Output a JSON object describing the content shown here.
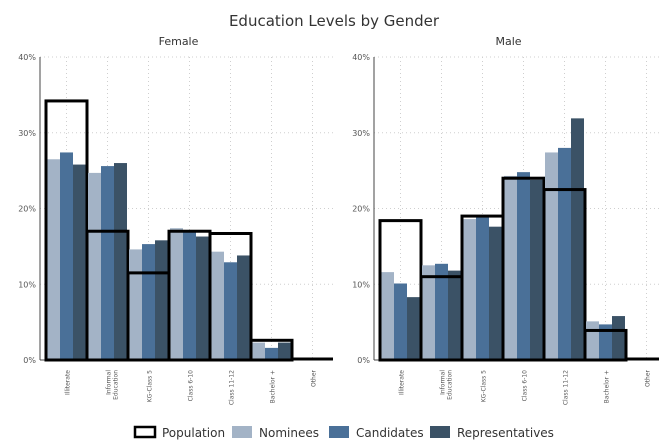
{
  "chart_data": {
    "type": "bar",
    "title": "Education Levels by Gender",
    "ylim": [
      0,
      40
    ],
    "yticks": [
      "0%",
      "10%",
      "20%",
      "30%",
      "40%"
    ],
    "grid": true,
    "legend_position": "bottom",
    "categories": [
      "Illiterate",
      "Informal Education",
      "KG-Class 5",
      "Class 6-10",
      "Class 11-12",
      "Bachelor +",
      "Other"
    ],
    "legend": [
      {
        "name": "Population",
        "style": "outline",
        "color": "#000000"
      },
      {
        "name": "Nominees",
        "style": "fill",
        "color": "#a3b3c6"
      },
      {
        "name": "Candidates",
        "style": "fill",
        "color": "#4a7098"
      },
      {
        "name": "Representatives",
        "style": "fill",
        "color": "#3b5266"
      }
    ],
    "panels": [
      {
        "name": "Female",
        "series": [
          {
            "name": "Population",
            "values": [
              34.2,
              17.0,
              11.5,
              17.0,
              16.7,
              2.6,
              0.3
            ]
          },
          {
            "name": "Nominees",
            "values": [
              26.5,
              24.7,
              14.6,
              17.4,
              14.3,
              2.3,
              0
            ]
          },
          {
            "name": "Candidates",
            "values": [
              27.4,
              25.6,
              15.3,
              17.1,
              12.9,
              1.6,
              0
            ]
          },
          {
            "name": "Representatives",
            "values": [
              25.8,
              26.0,
              15.8,
              16.3,
              13.8,
              2.3,
              0
            ]
          }
        ]
      },
      {
        "name": "Male",
        "series": [
          {
            "name": "Population",
            "values": [
              18.4,
              11.0,
              19.0,
              24.0,
              22.5,
              3.9,
              0.3
            ]
          },
          {
            "name": "Nominees",
            "values": [
              11.6,
              12.5,
              18.6,
              24.3,
              27.4,
              5.1,
              0
            ]
          },
          {
            "name": "Candidates",
            "values": [
              10.1,
              12.7,
              18.9,
              24.8,
              28.0,
              4.7,
              0
            ]
          },
          {
            "name": "Representatives",
            "values": [
              8.3,
              11.8,
              17.6,
              23.8,
              31.9,
              5.8,
              0
            ]
          }
        ]
      }
    ]
  }
}
